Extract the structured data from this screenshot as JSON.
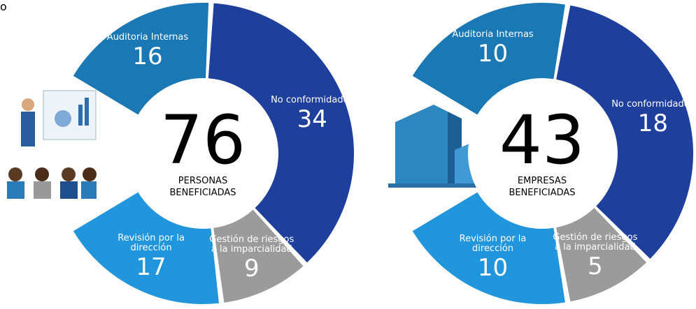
{
  "fragment": "o",
  "chart_data": [
    {
      "type": "donut",
      "total": 76,
      "center_label": "PERSONAS BENEFICIADAS",
      "categories": [
        "Auditoria Internas",
        "No conformidades",
        "Gestión de riesgos a la imparcialidad",
        "Revisión por la dirección"
      ],
      "values": [
        16,
        34,
        9,
        17
      ],
      "colors": [
        "#1a78b4",
        "#1f3f9c",
        "#9b9b9b",
        "#2196dc"
      ]
    },
    {
      "type": "donut",
      "total": 43,
      "center_label": "EMPRESAS BENEFICIADAS",
      "categories": [
        "Auditoria Internas",
        "No conformidades",
        "Gestión de riesgos a la imparcialidad",
        "Revisión por la dirección"
      ],
      "values": [
        10,
        18,
        5,
        10
      ],
      "colors": [
        "#1a78b4",
        "#1f3f9c",
        "#9b9b9b",
        "#2196dc"
      ]
    }
  ]
}
